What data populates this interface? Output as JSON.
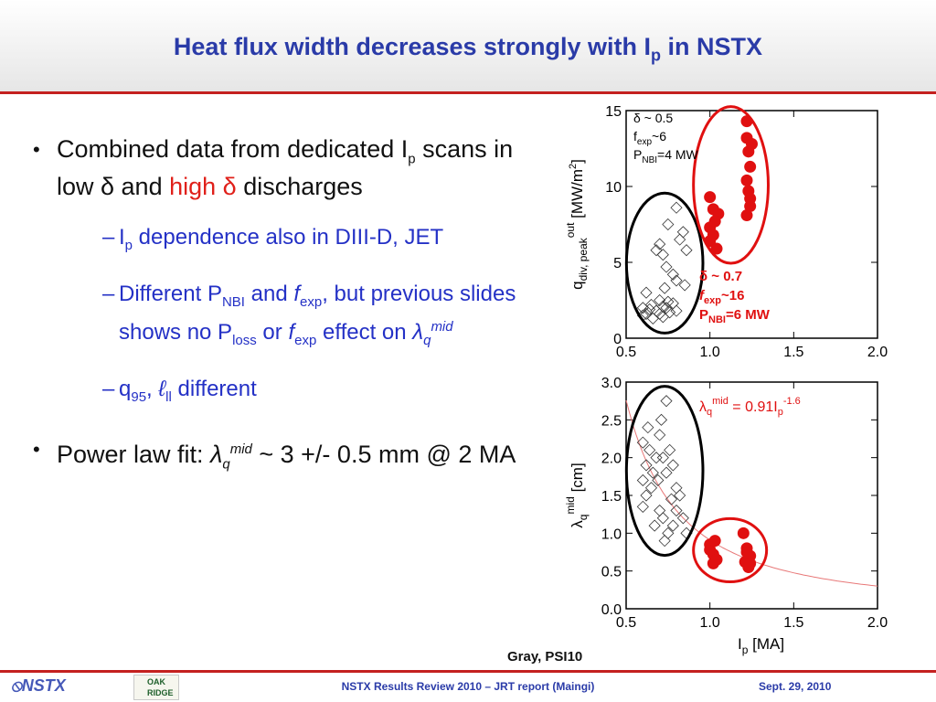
{
  "slide": {
    "title": "Heat flux width decreases strongly with I",
    "title_sub": "p",
    "title_end": " in NSTX",
    "bullet1": {
      "a": "Combined data from dedicated I",
      "a_sub": "p",
      "b": " scans in low δ and ",
      "c": "high δ",
      "d": " discharges"
    },
    "sub1": {
      "a": "I",
      "a_sub": "p",
      "b": " dependence also in DIII-D, JET"
    },
    "sub2": {
      "a": "Different P",
      "a_sub": "NBI",
      "b": " and ",
      "b_f": "f",
      "b_sub": "exp",
      "c": ", but previous slides shows no P",
      "c_sub": "loss",
      "d": " or ",
      "d_f": "f",
      "d_sub": "exp",
      "e": " effect on ",
      "e_sym": "λ",
      "e_q": "q",
      "e_sup": "mid"
    },
    "sub3": {
      "a": "q",
      "a_sub": "95",
      "b": ", ",
      "c": "ℓ",
      "c_sub": "ll",
      "d": " different"
    },
    "bullet2": {
      "a": "Power law fit: ",
      "sym": "λ",
      "q": "q",
      "sup": "mid",
      "b": " ~ 3 +/- 0.5 mm @ 2 MA"
    },
    "credit": "Gray, PSI10",
    "footer": {
      "logo": "NSTX",
      "ornl": [
        "OAK",
        "RIDGE"
      ],
      "center": "NSTX Results Review 2010 – JRT report (Maingi)",
      "date": "Sept. 29, 2010"
    }
  },
  "chart_data": [
    {
      "type": "scatter",
      "ylabel": "q",
      "ylabel_sub": "div, peak",
      "ylabel_sup": "out",
      "ylabel_unit": " [MW/m",
      "ylabel_unit_sup": "2",
      "ylabel_end": "]",
      "xlim": [
        0.5,
        2.0
      ],
      "ylim": [
        0,
        15
      ],
      "x_ticks": [
        "0.5",
        "1.0",
        "1.5",
        "2.0"
      ],
      "y_ticks": [
        "0",
        "5",
        "10",
        "15"
      ],
      "annot_low": {
        "l1": "δ ~ 0.5",
        "l2a": "f",
        "l2sub": "exp",
        "l2b": "~6",
        "l3a": "P",
        "l3sub": "NBI",
        "l3b": "=4 MW"
      },
      "annot_high": {
        "l1": "δ ~ 0.7",
        "l2a": "f",
        "l2sub": "exp",
        "l2b": "~16",
        "l3a": "P",
        "l3sub": "NBI",
        "l3b": "=6 MW"
      },
      "series": [
        {
          "marker": "diamond-open",
          "color": "#333333",
          "points": [
            [
              0.6,
              2.0
            ],
            [
              0.62,
              1.6
            ],
            [
              0.65,
              2.2
            ],
            [
              0.68,
              1.8
            ],
            [
              0.7,
              2.5
            ],
            [
              0.72,
              1.4
            ],
            [
              0.74,
              2.0
            ],
            [
              0.76,
              1.7
            ],
            [
              0.78,
              2.3
            ],
            [
              0.6,
              1.5
            ],
            [
              0.64,
              1.9
            ],
            [
              0.7,
              1.6
            ],
            [
              0.72,
              2.1
            ],
            [
              0.75,
              2.4
            ],
            [
              0.8,
              1.8
            ],
            [
              0.66,
              1.3
            ],
            [
              0.7,
              6.2
            ],
            [
              0.72,
              5.5
            ],
            [
              0.74,
              4.7
            ],
            [
              0.78,
              4.2
            ],
            [
              0.8,
              3.8
            ],
            [
              0.82,
              6.5
            ],
            [
              0.84,
              7.0
            ],
            [
              0.86,
              5.8
            ],
            [
              0.75,
              7.5
            ],
            [
              0.8,
              8.6
            ],
            [
              0.68,
              5.8
            ],
            [
              0.85,
              3.5
            ],
            [
              0.62,
              3.0
            ],
            [
              0.73,
              3.3
            ]
          ]
        },
        {
          "marker": "circle-filled",
          "color": "#e01010",
          "points": [
            [
              1.0,
              9.3
            ],
            [
              1.0,
              7.3
            ],
            [
              1.0,
              6.4
            ],
            [
              1.02,
              8.5
            ],
            [
              1.04,
              5.9
            ],
            [
              1.05,
              8.2
            ],
            [
              1.02,
              6.8
            ],
            [
              1.03,
              7.7
            ],
            [
              1.22,
              14.3
            ],
            [
              1.22,
              13.2
            ],
            [
              1.23,
              12.3
            ],
            [
              1.24,
              11.3
            ],
            [
              1.22,
              10.4
            ],
            [
              1.23,
              9.7
            ],
            [
              1.24,
              8.7
            ],
            [
              1.22,
              8.1
            ],
            [
              1.25,
              12.8
            ],
            [
              1.24,
              9.2
            ]
          ]
        }
      ]
    },
    {
      "type": "scatter",
      "ylabel": "λ",
      "ylabel_sub": "q",
      "ylabel_sup": "mid",
      "ylabel_unit": " [cm]",
      "xlabel": "I",
      "xlabel_sub": "p",
      "xlabel_unit": " [MA]",
      "xlim": [
        0.5,
        2.0
      ],
      "ylim": [
        0.0,
        3.0
      ],
      "x_ticks": [
        "0.5",
        "1.0",
        "1.5",
        "2.0"
      ],
      "y_ticks": [
        "0.0",
        "0.5",
        "1.0",
        "1.5",
        "2.0",
        "2.5",
        "3.0"
      ],
      "fit_label": {
        "a": "λ",
        "sub": "q",
        "sup": "mid",
        "b": " = 0.91I",
        "sub2": "p",
        "sup2": "-1.6"
      },
      "fit": {
        "coef": 0.91,
        "exp": -1.6,
        "color": "#e87878"
      },
      "series": [
        {
          "marker": "diamond-open",
          "color": "#333333",
          "points": [
            [
              0.6,
              2.2
            ],
            [
              0.62,
              1.9
            ],
            [
              0.64,
              2.1
            ],
            [
              0.66,
              1.8
            ],
            [
              0.6,
              1.7
            ],
            [
              0.62,
              1.5
            ],
            [
              0.65,
              1.6
            ],
            [
              0.68,
              2.0
            ],
            [
              0.7,
              2.3
            ],
            [
              0.72,
              2.0
            ],
            [
              0.74,
              1.8
            ],
            [
              0.76,
              2.1
            ],
            [
              0.78,
              1.9
            ],
            [
              0.8,
              1.6
            ],
            [
              0.82,
              1.5
            ],
            [
              0.7,
              1.3
            ],
            [
              0.72,
              1.2
            ],
            [
              0.75,
              1.0
            ],
            [
              0.78,
              1.1
            ],
            [
              0.8,
              1.3
            ],
            [
              0.84,
              1.2
            ],
            [
              0.86,
              1.0
            ],
            [
              0.73,
              0.9
            ],
            [
              0.67,
              1.1
            ],
            [
              0.63,
              2.4
            ],
            [
              0.71,
              2.5
            ],
            [
              0.74,
              2.75
            ],
            [
              0.6,
              1.35
            ],
            [
              0.77,
              1.45
            ],
            [
              0.69,
              1.7
            ]
          ]
        },
        {
          "marker": "circle-filled",
          "color": "#e01010",
          "points": [
            [
              1.0,
              0.85
            ],
            [
              1.02,
              0.72
            ],
            [
              1.04,
              0.65
            ],
            [
              1.0,
              0.78
            ],
            [
              1.03,
              0.9
            ],
            [
              1.02,
              0.6
            ],
            [
              1.2,
              1.0
            ],
            [
              1.22,
              0.8
            ],
            [
              1.24,
              0.7
            ],
            [
              1.21,
              0.62
            ],
            [
              1.23,
              0.55
            ],
            [
              1.22,
              0.75
            ],
            [
              1.24,
              0.6
            ]
          ]
        }
      ]
    }
  ]
}
